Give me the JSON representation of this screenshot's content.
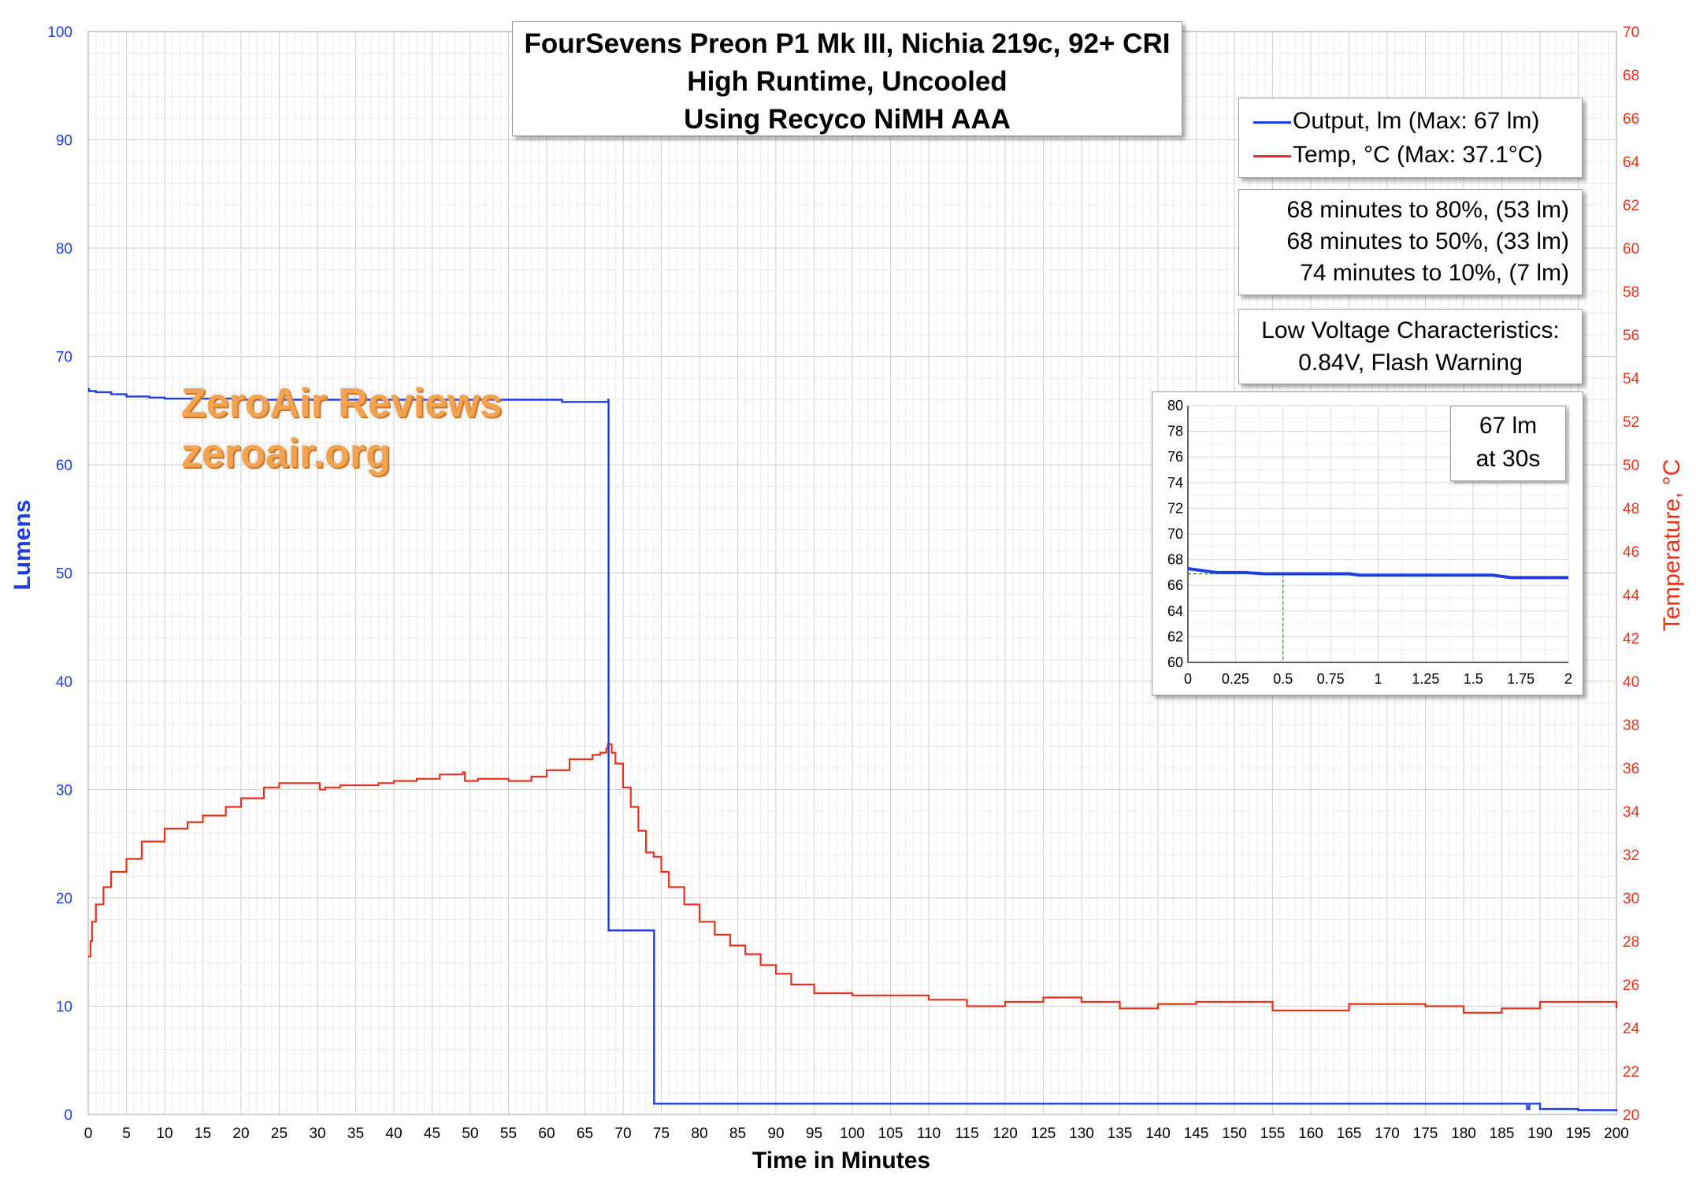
{
  "chart_data": {
    "type": "line",
    "title": [
      "FourSevens Preon P1 Mk III, Nichia 219c, 92+ CRI",
      "High Runtime, Uncooled",
      "Using Recyco NiMH AAA"
    ],
    "xlabel": "Time in Minutes",
    "ylabel": "Lumens",
    "y2label": "Temperature, °C",
    "xlim": [
      0,
      200
    ],
    "ylim": [
      0,
      100
    ],
    "y2lim": [
      20,
      70
    ],
    "xticks": [
      "0",
      "5",
      "10",
      "15",
      "20",
      "25",
      "30",
      "35",
      "40",
      "45",
      "50",
      "55",
      "60",
      "65",
      "70",
      "75",
      "80",
      "85",
      "90",
      "95",
      "100",
      "105",
      "110",
      "115",
      "120",
      "125",
      "130",
      "135",
      "140",
      "145",
      "150",
      "155",
      "160",
      "165",
      "170",
      "175",
      "180",
      "185",
      "190",
      "195",
      "200"
    ],
    "yticks": [
      "0",
      "10",
      "20",
      "30",
      "40",
      "50",
      "60",
      "70",
      "80",
      "90",
      "100"
    ],
    "y2ticks": [
      "20",
      "22",
      "24",
      "26",
      "28",
      "30",
      "32",
      "34",
      "36",
      "38",
      "40",
      "42",
      "44",
      "46",
      "48",
      "50",
      "52",
      "54",
      "56",
      "58",
      "60",
      "62",
      "64",
      "66",
      "68",
      "70"
    ],
    "grid": true,
    "colors": {
      "output": "#1f3de0",
      "temp": "#e8301c",
      "left_axis_text": "#1f3de0",
      "right_axis_text": "#e8301c",
      "inset_line": "#1f3de0",
      "inset_marker": "#2e8b2e"
    },
    "series": [
      {
        "name": "Output, lm (Max: 67 lm)",
        "axis": "left",
        "x": [
          0,
          0.1,
          1,
          3,
          5,
          8,
          10,
          20,
          40,
          60,
          62,
          67.9,
          68.05,
          68.1,
          69,
          73.9,
          74.05,
          80,
          100,
          150,
          188,
          188.3,
          188.6,
          190,
          192,
          195,
          200
        ],
        "y": [
          67.0,
          66.8,
          66.7,
          66.5,
          66.3,
          66.2,
          66.1,
          66.0,
          66.0,
          66.0,
          65.8,
          65.8,
          66.0,
          17.0,
          17.0,
          17.0,
          1.0,
          1.0,
          1.0,
          1.0,
          1.0,
          0.5,
          1.0,
          0.5,
          0.5,
          0.4,
          0.3
        ]
      },
      {
        "name": "Temp, °C (Max: 37.1°C)",
        "axis": "right",
        "x": [
          0,
          0.3,
          0.5,
          1,
          2,
          3,
          5,
          7,
          10,
          13,
          15,
          18,
          20,
          23,
          25,
          30,
          30.3,
          31,
          33,
          38,
          40,
          43,
          46,
          49,
          49.3,
          51,
          55,
          58,
          60,
          63,
          66,
          67,
          67.8,
          68,
          68.5,
          69,
          70,
          71,
          72,
          73,
          74,
          75,
          76,
          78,
          80,
          82,
          84,
          86,
          88,
          90,
          92,
          95,
          100,
          105,
          110,
          115,
          120,
          125,
          130,
          135,
          140,
          145,
          150,
          155,
          160,
          165,
          170,
          175,
          180,
          185,
          190,
          195,
          200
        ],
        "y": [
          27.3,
          28.0,
          28.9,
          29.7,
          30.5,
          31.2,
          31.8,
          32.6,
          33.2,
          33.5,
          33.8,
          34.2,
          34.6,
          35.1,
          35.3,
          35.3,
          35.0,
          35.1,
          35.2,
          35.3,
          35.4,
          35.5,
          35.7,
          35.8,
          35.4,
          35.5,
          35.4,
          35.6,
          35.9,
          36.4,
          36.6,
          36.7,
          36.9,
          37.1,
          36.7,
          36.2,
          35.1,
          34.2,
          33.1,
          32.1,
          31.9,
          31.2,
          30.5,
          29.7,
          28.9,
          28.3,
          27.8,
          27.4,
          26.9,
          26.5,
          26.0,
          25.6,
          25.5,
          25.5,
          25.3,
          25.0,
          25.2,
          25.4,
          25.2,
          24.9,
          25.1,
          25.2,
          25.2,
          24.8,
          24.8,
          25.1,
          25.1,
          25.0,
          24.7,
          24.9,
          25.2,
          25.2,
          24.9
        ]
      }
    ],
    "legend": {
      "position": "top-right"
    },
    "annotations": [
      "68 minutes to 80%, (53 lm)",
      "68 minutes to 50%, (33 lm)",
      "74 minutes to 10%, (7 lm)"
    ],
    "inset": {
      "xlim": [
        0,
        2
      ],
      "ylim": [
        60,
        80
      ],
      "xticks": [
        "0",
        "0.25",
        "0.5",
        "0.75",
        "1",
        "1.25",
        "1.5",
        "1.75",
        "2"
      ],
      "yticks": [
        "60",
        "62",
        "64",
        "66",
        "68",
        "70",
        "72",
        "74",
        "76",
        "78",
        "80"
      ],
      "x": [
        0,
        0.05,
        0.1,
        0.15,
        0.3,
        0.4,
        0.5,
        0.75,
        0.85,
        0.9,
        1.2,
        1.6,
        1.65,
        1.7,
        2.0
      ],
      "y": [
        67.3,
        67.2,
        67.1,
        67.0,
        67.0,
        66.9,
        66.9,
        66.9,
        66.9,
        66.8,
        66.8,
        66.8,
        66.7,
        66.6,
        66.6
      ],
      "marker_x": 0.5
    }
  },
  "boxes": {
    "title_lines": [
      "FourSevens Preon P1 Mk III, Nichia 219c, 92+ CRI",
      "High Runtime, Uncooled",
      "Using Recyco NiMH AAA"
    ],
    "legend_output": "Output, lm (Max: 67 lm)",
    "legend_temp": "Temp, °C (Max: 37.1°C)",
    "runtime_lines": [
      "68 minutes to 80%, (53 lm)",
      "68 minutes to 50%, (33 lm)",
      "74 minutes to 10%, (7 lm)"
    ],
    "low_voltage_lines": [
      "Low Voltage Characteristics:",
      "0.84V, Flash Warning"
    ],
    "inset_note_lines": [
      "67 lm",
      "at 30s"
    ],
    "watermark_lines": [
      "ZeroAir Reviews",
      "zeroair.org"
    ]
  }
}
